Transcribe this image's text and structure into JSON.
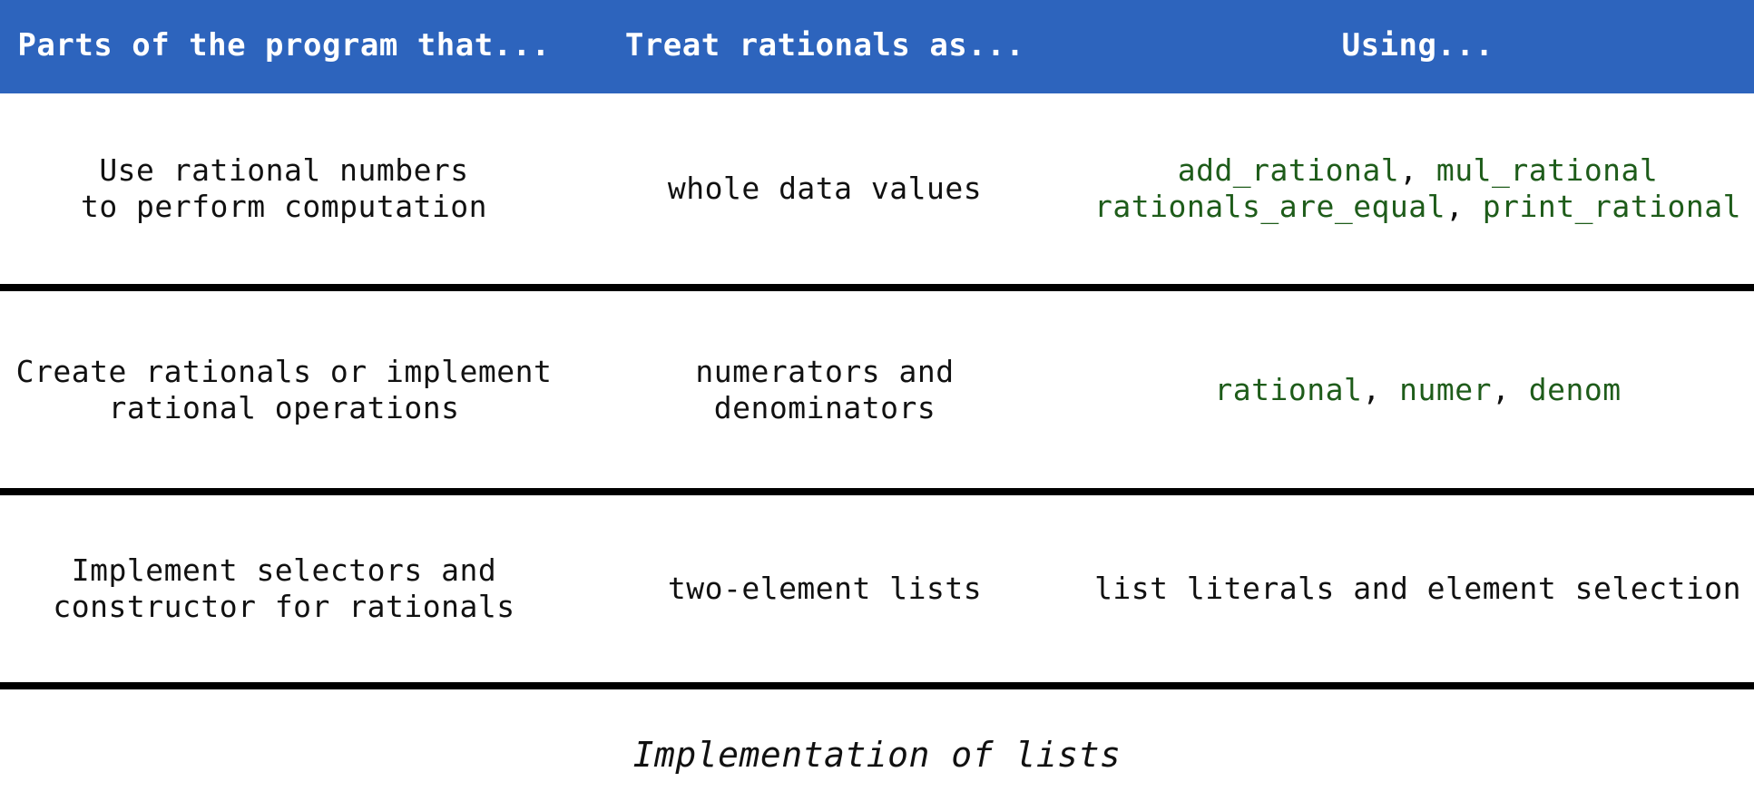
{
  "header": {
    "col1": "Parts of the program that...",
    "col2": "Treat rationals as...",
    "col3": "Using..."
  },
  "rows": [
    {
      "parts": [
        "Use rational numbers",
        "to perform computation"
      ],
      "treat": [
        "whole data values"
      ],
      "using_lines": [
        [
          "add_rational",
          "mul_rational"
        ],
        [
          "rationals_are_equal",
          "print_rational"
        ]
      ]
    },
    {
      "parts": [
        "Create rationals or implement",
        "rational operations"
      ],
      "treat": [
        "numerators and",
        "denominators"
      ],
      "using_lines": [
        [
          "rational",
          "numer",
          "denom"
        ]
      ]
    },
    {
      "parts": [
        "Implement selectors and",
        "constructor for rationals"
      ],
      "treat": [
        "two-element lists"
      ],
      "using_text": "list literals and element selection"
    }
  ],
  "separator": ", ",
  "footer": "Implementation of lists",
  "colors": {
    "header_bg": "#2d64bd",
    "header_text": "#ffffff",
    "function_name": "#1e5c1a",
    "rule": "#000000"
  }
}
